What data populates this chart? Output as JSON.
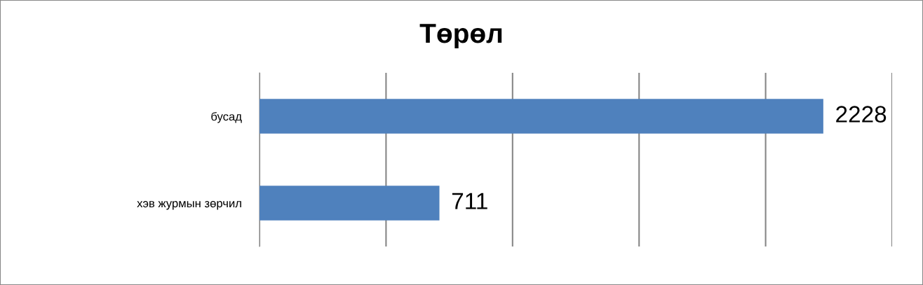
{
  "chart_data": {
    "type": "bar",
    "orientation": "horizontal",
    "title": "Төрөл",
    "categories": [
      "бусад",
      "хэв журмын зөрчил"
    ],
    "values": [
      2228,
      711
    ],
    "color": "#4f81bd",
    "data_labels": true,
    "xlim": [
      0,
      2500
    ],
    "xticks": [
      {
        "value": 0,
        "label": null
      },
      {
        "value": 500,
        "label": null
      },
      {
        "value": 1000,
        "label": null
      },
      {
        "value": 1500,
        "label": null
      },
      {
        "value": 2000,
        "label": null
      },
      {
        "value": 2500,
        "label": null
      }
    ],
    "grid": "x",
    "tick_labels": "y"
  }
}
